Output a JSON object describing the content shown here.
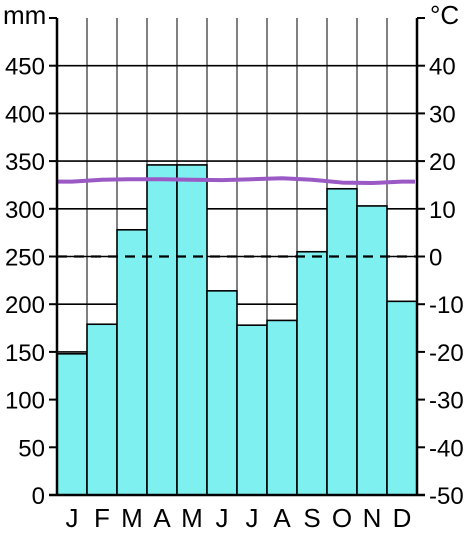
{
  "chart_data": {
    "type": "bar",
    "categories": [
      "J",
      "F",
      "M",
      "A",
      "M",
      "J",
      "J",
      "A",
      "S",
      "O",
      "N",
      "D"
    ],
    "series": [
      {
        "type": "bar",
        "axis": "left",
        "values": [
          148,
          179,
          278,
          346,
          346,
          214,
          178,
          183,
          255,
          321,
          303,
          203
        ],
        "color": "#7ff0f0"
      },
      {
        "type": "line",
        "axis": "right",
        "values": [
          15.7,
          16.1,
          16.2,
          16.2,
          16.1,
          16.0,
          16.2,
          16.4,
          16.1,
          15.5,
          15.4,
          15.7
        ],
        "color": "#9b59c5"
      }
    ],
    "ylabel": "mm",
    "y2label": "°C",
    "ylim": [
      0,
      500
    ],
    "y2lim": [
      -50,
      50
    ],
    "yticks": [
      "0",
      "50",
      "100",
      "150",
      "200",
      "250",
      "300",
      "350",
      "400",
      "450"
    ],
    "y2ticks": [
      "-50",
      "-40",
      "-30",
      "-20",
      "-10",
      "0",
      "10",
      "20",
      "30",
      "40"
    ],
    "reference_line": {
      "axis": "right",
      "value": 0,
      "style": "dashed"
    },
    "grid": true
  }
}
